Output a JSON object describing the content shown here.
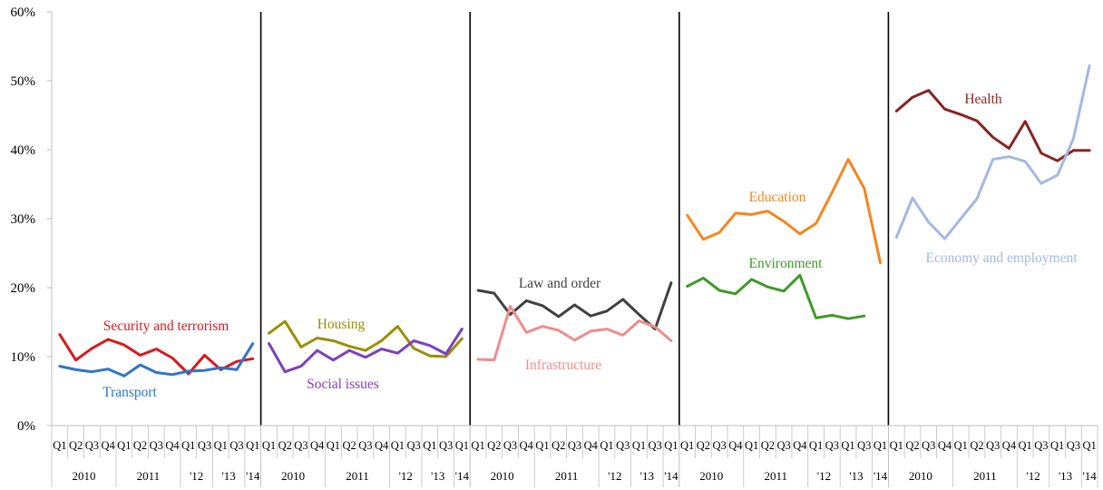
{
  "chart_data": {
    "type": "line",
    "y_axis": {
      "ylim": [
        0,
        60
      ],
      "ticks": [
        "0%",
        "10%",
        "20%",
        "30%",
        "40%",
        "50%",
        "60%"
      ]
    },
    "grid": false,
    "x_axis": {
      "quarter_labels": [
        "Q1",
        "Q2",
        "Q3",
        "Q4",
        "Q1",
        "Q2",
        "Q3",
        "Q4",
        "Q1",
        "Q3",
        "Q1",
        "Q3",
        "Q1"
      ],
      "year_groups": [
        {
          "label": "2010",
          "start": 0,
          "end": 4
        },
        {
          "label": "2011",
          "start": 4,
          "end": 8
        },
        {
          "label": "'12",
          "start": 8,
          "end": 10
        },
        {
          "label": "'13",
          "start": 10,
          "end": 12
        },
        {
          "label": "'14",
          "start": 12,
          "end": 13
        }
      ]
    },
    "panels": [
      {
        "series": [
          {
            "name": "Security and terrorism",
            "color": "#d7191c",
            "values": [
              13.2,
              9.5,
              11.2,
              12.5,
              11.7,
              10.2,
              11.1,
              9.8,
              7.5,
              10.2,
              8.1,
              9.3,
              9.7
            ]
          },
          {
            "name": "Transport",
            "color": "#2e75c8",
            "values": [
              8.6,
              8.1,
              7.8,
              8.2,
              7.2,
              8.8,
              7.7,
              7.4,
              7.9,
              8.0,
              8.4,
              8.1,
              11.9
            ]
          }
        ]
      },
      {
        "series": [
          {
            "name": "Housing",
            "color": "#9b8f00",
            "values": [
              13.4,
              15.1,
              11.4,
              12.7,
              12.3,
              11.5,
              10.9,
              12.3,
              14.4,
              11.2,
              10.1,
              10.0,
              12.6
            ]
          },
          {
            "name": "Social issues",
            "color": "#7b3fbf",
            "values": [
              11.9,
              7.8,
              8.6,
              10.9,
              9.5,
              10.9,
              9.9,
              11.1,
              10.5,
              12.3,
              11.6,
              10.4,
              14.0
            ]
          }
        ]
      },
      {
        "series": [
          {
            "name": "Law and order",
            "color": "#404040",
            "values": [
              19.6,
              19.2,
              16.1,
              18.1,
              17.4,
              15.8,
              17.5,
              15.9,
              16.6,
              18.3,
              16.1,
              14.0,
              20.7
            ]
          },
          {
            "name": "Infrastructure",
            "color": "#f08c8c",
            "values": [
              9.6,
              9.5,
              17.3,
              13.5,
              14.4,
              13.8,
              12.4,
              13.7,
              14.0,
              13.1,
              15.2,
              14.3,
              12.3
            ]
          }
        ]
      },
      {
        "series": [
          {
            "name": "Education",
            "color": "#f5861f",
            "values": [
              30.5,
              27.0,
              28.0,
              30.8,
              30.6,
              31.1,
              29.6,
              27.8,
              29.3,
              33.8,
              38.6,
              34.4,
              23.6
            ]
          },
          {
            "name": "Environment",
            "color": "#3f9a28",
            "values": [
              20.2,
              21.4,
              19.6,
              19.1,
              21.2,
              20.1,
              19.5,
              21.8,
              15.6,
              16.0,
              15.5,
              15.9,
              null
            ]
          }
        ]
      },
      {
        "series": [
          {
            "name": "Health",
            "color": "#8b2323",
            "values": [
              45.6,
              47.6,
              48.6,
              45.9,
              45.1,
              44.2,
              41.8,
              40.2,
              44.1,
              39.5,
              38.4,
              39.9,
              39.9
            ]
          },
          {
            "name": "Economy and employment",
            "color": "#a4b8e2",
            "values": [
              27.3,
              33.0,
              29.5,
              27.1,
              30.0,
              32.9,
              38.6,
              39.0,
              38.3,
              35.1,
              36.3,
              41.6,
              52.2
            ]
          }
        ]
      }
    ]
  }
}
